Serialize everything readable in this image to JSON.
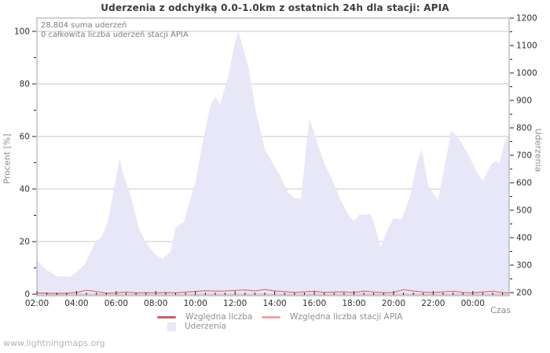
{
  "page": {
    "watermark": "www.lightningmaps.org"
  },
  "chart_data": {
    "type": "area",
    "title": "Uderzenia z odchyłką 0.0-1.0km z ostatnich 24h dla stacji: APIA",
    "annotations": [
      "28,804 suma uderzeń",
      "0 całkowita liczba uderzeń stacji APIA"
    ],
    "xlabel": "Czas",
    "grid": "horizontal-only",
    "x_range_hours": [
      2,
      25.8333
    ],
    "x_major_hours": [
      2,
      4,
      6,
      8,
      10,
      12,
      14,
      16,
      18,
      20,
      22,
      24
    ],
    "x_tick_labels": [
      "02:00",
      "04:00",
      "06:00",
      "08:00",
      "10:00",
      "12:00",
      "14:00",
      "16:00",
      "18:00",
      "20:00",
      "22:00",
      "00:00"
    ],
    "x_minor_step_hours": 0.5,
    "y_left": {
      "label": "Procent  [%]",
      "range": [
        0,
        100
      ],
      "major_ticks": [
        0,
        20,
        40,
        60,
        80,
        100
      ],
      "minor_step": 10
    },
    "y_right": {
      "label": "Uderzenia",
      "range": [
        200,
        1200
      ],
      "major_ticks": [
        200,
        300,
        400,
        500,
        600,
        700,
        800,
        900,
        1000,
        1100,
        1200
      ],
      "minor_step": 50
    },
    "colors": {
      "area_fill": "#e7e7f8",
      "rel_line": "#cc5f66",
      "rel_line_apia": "#f2a2a8",
      "grid": "#c9c9c9",
      "frame": "#a0a0a0",
      "tick": "#222222",
      "tick_label": "#2f2f2f"
    },
    "series": [
      {
        "name": "Uderzenia",
        "kind": "area",
        "axis": "right",
        "points": [
          [
            "02:00",
            317
          ],
          [
            "02:25",
            286
          ],
          [
            "03:00",
            260
          ],
          [
            "03:40",
            258
          ],
          [
            "04:00",
            274
          ],
          [
            "04:25",
            303
          ],
          [
            "04:50",
            366
          ],
          [
            "05:00",
            389
          ],
          [
            "05:15",
            400
          ],
          [
            "05:35",
            460
          ],
          [
            "06:00",
            620
          ],
          [
            "06:10",
            690
          ],
          [
            "06:20",
            637
          ],
          [
            "06:45",
            546
          ],
          [
            "07:10",
            429
          ],
          [
            "07:35",
            374
          ],
          [
            "08:00",
            337
          ],
          [
            "08:20",
            323
          ],
          [
            "08:45",
            350
          ],
          [
            "09:00",
            437
          ],
          [
            "09:25",
            457
          ],
          [
            "09:40",
            523
          ],
          [
            "10:00",
            600
          ],
          [
            "10:20",
            734
          ],
          [
            "10:45",
            880
          ],
          [
            "11:00",
            914
          ],
          [
            "11:15",
            886
          ],
          [
            "11:40",
            991
          ],
          [
            "12:00",
            1114
          ],
          [
            "12:10",
            1151
          ],
          [
            "12:40",
            1023
          ],
          [
            "13:05",
            849
          ],
          [
            "13:30",
            723
          ],
          [
            "13:50",
            680
          ],
          [
            "14:15",
            629
          ],
          [
            "14:40",
            566
          ],
          [
            "15:00",
            543
          ],
          [
            "15:20",
            543
          ],
          [
            "15:35",
            723
          ],
          [
            "15:45",
            834
          ],
          [
            "16:10",
            743
          ],
          [
            "16:30",
            671
          ],
          [
            "16:55",
            609
          ],
          [
            "17:20",
            534
          ],
          [
            "17:45",
            480
          ],
          [
            "18:00",
            460
          ],
          [
            "18:15",
            483
          ],
          [
            "18:50",
            486
          ],
          [
            "19:05",
            437
          ],
          [
            "19:20",
            366
          ],
          [
            "19:45",
            437
          ],
          [
            "20:00",
            471
          ],
          [
            "20:25",
            466
          ],
          [
            "20:50",
            551
          ],
          [
            "21:10",
            666
          ],
          [
            "21:25",
            723
          ],
          [
            "21:45",
            590
          ],
          [
            "22:15",
            537
          ],
          [
            "22:40",
            694
          ],
          [
            "22:55",
            791
          ],
          [
            "23:20",
            757
          ],
          [
            "23:45",
            706
          ],
          [
            "00:10",
            643
          ],
          [
            "00:30",
            606
          ],
          [
            "00:55",
            666
          ],
          [
            "01:10",
            680
          ],
          [
            "01:20",
            671
          ],
          [
            "01:35",
            743
          ],
          [
            "01:50",
            780
          ]
        ]
      },
      {
        "name": "Względna liczba",
        "kind": "line",
        "axis": "left",
        "points": [
          [
            "02:00",
            0.5
          ],
          [
            "02:30",
            0.4
          ],
          [
            "03:00",
            0.3
          ],
          [
            "03:30",
            0.4
          ],
          [
            "04:00",
            0.7
          ],
          [
            "04:30",
            1.5
          ],
          [
            "05:00",
            1.0
          ],
          [
            "05:30",
            0.4
          ],
          [
            "06:00",
            0.5
          ],
          [
            "06:30",
            0.8
          ],
          [
            "07:00",
            0.5
          ],
          [
            "07:30",
            0.6
          ],
          [
            "08:00",
            0.5
          ],
          [
            "08:30",
            0.7
          ],
          [
            "09:00",
            0.5
          ],
          [
            "09:30",
            0.8
          ],
          [
            "10:00",
            1.0
          ],
          [
            "10:30",
            1.3
          ],
          [
            "11:00",
            1.1
          ],
          [
            "11:30",
            1.2
          ],
          [
            "12:00",
            1.4
          ],
          [
            "12:30",
            1.6
          ],
          [
            "13:00",
            1.2
          ],
          [
            "13:30",
            1.8
          ],
          [
            "14:00",
            1.2
          ],
          [
            "14:30",
            1.0
          ],
          [
            "15:00",
            0.7
          ],
          [
            "15:30",
            0.9
          ],
          [
            "16:00",
            1.1
          ],
          [
            "16:30",
            0.7
          ],
          [
            "17:00",
            0.8
          ],
          [
            "17:30",
            0.9
          ],
          [
            "18:00",
            0.6
          ],
          [
            "18:30",
            1.2
          ],
          [
            "19:00",
            0.8
          ],
          [
            "19:30",
            0.6
          ],
          [
            "20:00",
            0.7
          ],
          [
            "20:30",
            1.7
          ],
          [
            "21:00",
            1.2
          ],
          [
            "21:30",
            0.8
          ],
          [
            "22:00",
            0.6
          ],
          [
            "22:30",
            0.9
          ],
          [
            "23:00",
            1.1
          ],
          [
            "23:30",
            0.7
          ],
          [
            "00:00",
            0.5
          ],
          [
            "00:30",
            0.8
          ],
          [
            "01:00",
            1.1
          ],
          [
            "01:30",
            0.6
          ],
          [
            "01:50",
            0.5
          ]
        ]
      },
      {
        "name": "Względna liczba stacji APIA",
        "kind": "line",
        "axis": "left",
        "points": [
          [
            "02:00",
            0
          ],
          [
            "06:00",
            0
          ],
          [
            "10:00",
            0
          ],
          [
            "14:00",
            0
          ],
          [
            "18:00",
            0
          ],
          [
            "22:00",
            0
          ],
          [
            "01:50",
            0
          ]
        ]
      }
    ]
  }
}
